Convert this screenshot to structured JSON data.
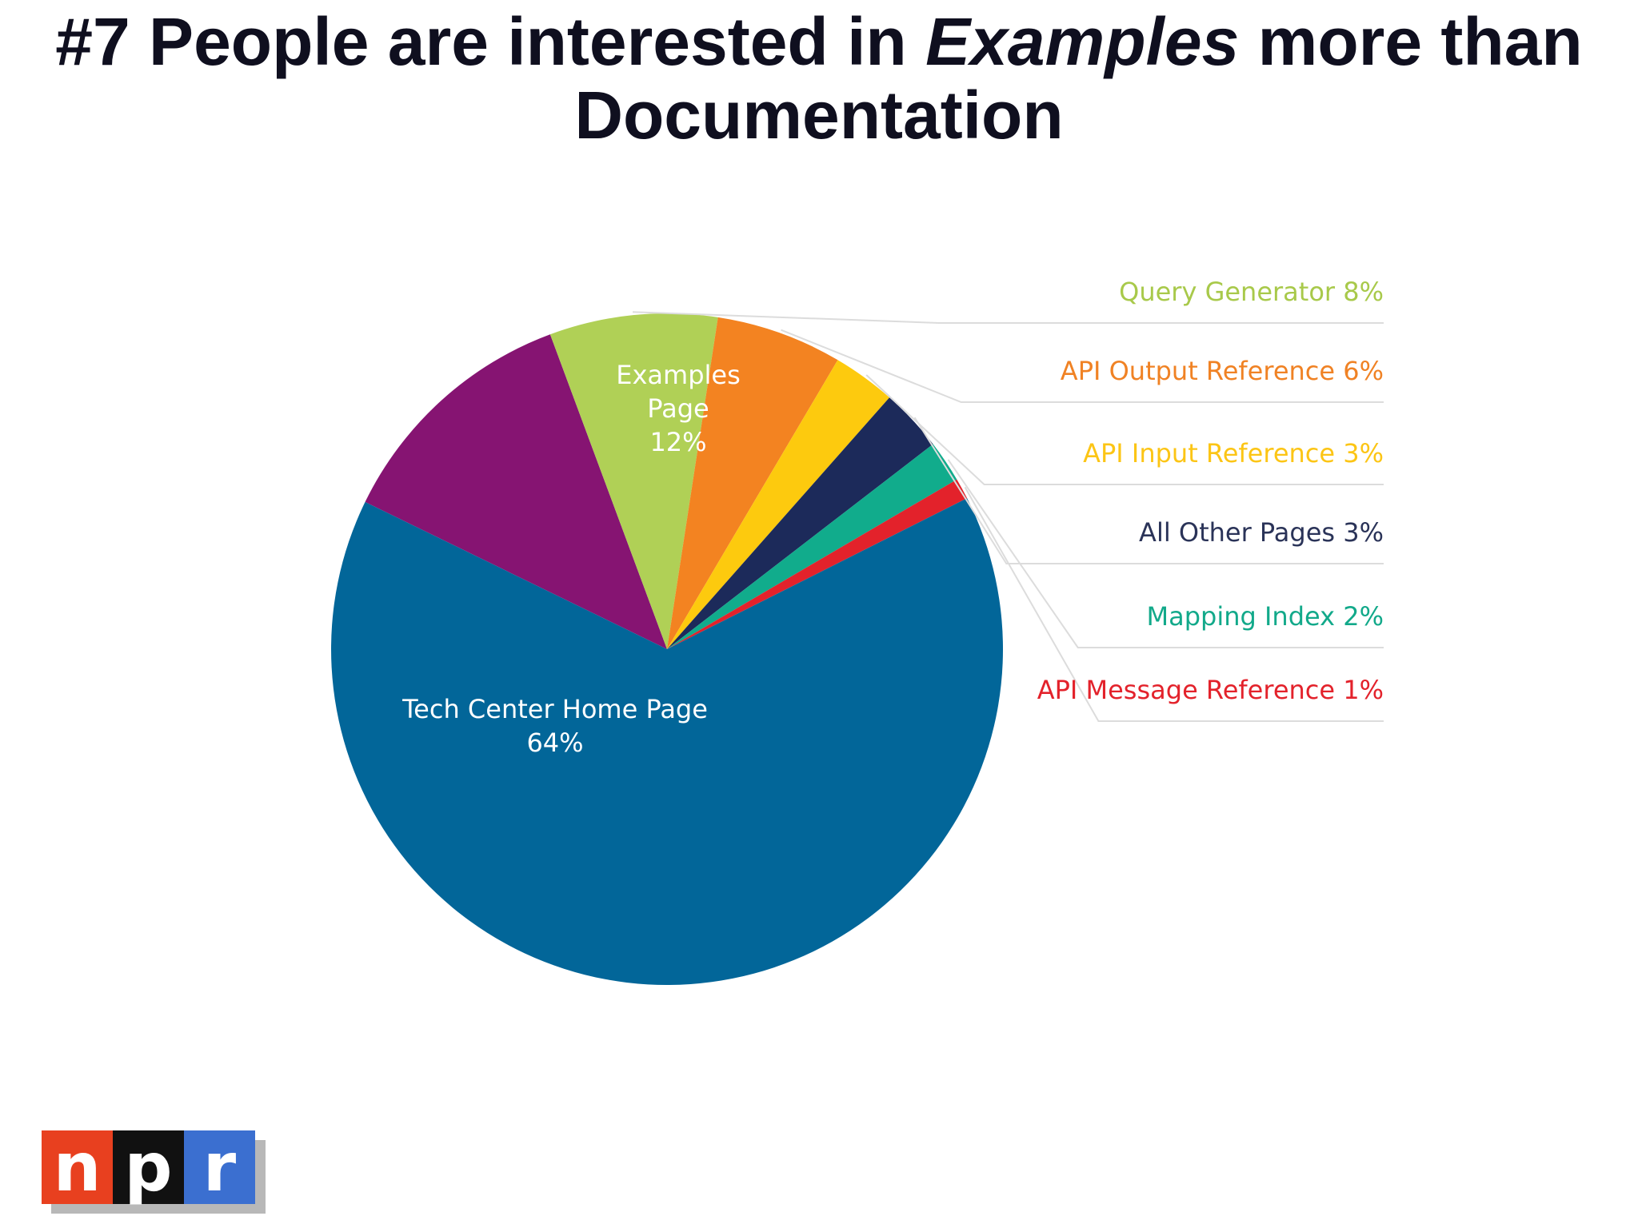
{
  "header": {
    "title_part1": "#7 People are interested in ",
    "title_emph": "Examples",
    "title_part2": " more than",
    "title_line2": "Documentation"
  },
  "chart_data": {
    "type": "pie",
    "start": "clockwise from top",
    "slices": [
      {
        "label": "Examples Page",
        "value": 12,
        "display": "12%",
        "color": "#861472",
        "label_color": "#ffffff"
      },
      {
        "label": "Query Generator",
        "value": 8,
        "display": "8%",
        "color": "#b0d056",
        "label_color": "#a8c94a"
      },
      {
        "label": "API Output Reference",
        "value": 6,
        "display": "6%",
        "color": "#f38321",
        "label_color": "#f08224"
      },
      {
        "label": "API Input Reference",
        "value": 3,
        "display": "3%",
        "color": "#fdca0e",
        "label_color": "#fcc515"
      },
      {
        "label": "All Other Pages",
        "value": 3,
        "display": "3%",
        "color": "#1c2a5a",
        "label_color": "#2a3358"
      },
      {
        "label": "Mapping Index",
        "value": 2,
        "display": "2%",
        "color": "#11ac8c",
        "label_color": "#12a98a"
      },
      {
        "label": "API Message Reference",
        "value": 1,
        "display": "1%",
        "color": "#e3222b",
        "label_color": "#e3222b"
      },
      {
        "label": "Tech Center Home Page",
        "value": 64,
        "display": "64%",
        "color": "#026699",
        "label_color": "#ffffff"
      }
    ]
  },
  "logo": {
    "letters": [
      "n",
      "p",
      "r"
    ],
    "colors": [
      "#e8401f",
      "#111111",
      "#3b6fd0"
    ]
  }
}
